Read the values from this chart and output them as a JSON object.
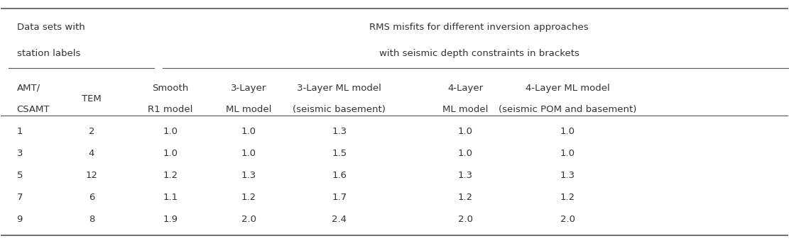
{
  "header_group1_line1": "Data sets with",
  "header_group1_line2": "station labels",
  "header_group2_line1": "RMS misfits for different inversion approaches",
  "header_group2_line2": "with seismic depth constraints in brackets",
  "col_headers": [
    [
      "AMT/",
      "CSAMT"
    ],
    [
      "TEM",
      ""
    ],
    [
      "Smooth",
      "R1 model"
    ],
    [
      "3-Layer",
      "ML model"
    ],
    [
      "3-Layer ML model",
      "(seismic basement)"
    ],
    [
      "4-Layer",
      "ML model"
    ],
    [
      "4-Layer ML model",
      "(seismic POM and basement)"
    ]
  ],
  "rows": [
    [
      "1",
      "2",
      "1.0",
      "1.0",
      "1.3",
      "1.0",
      "1.0"
    ],
    [
      "3",
      "4",
      "1.0",
      "1.0",
      "1.5",
      "1.0",
      "1.0"
    ],
    [
      "5",
      "12",
      "1.2",
      "1.3",
      "1.6",
      "1.3",
      "1.3"
    ],
    [
      "7",
      "6",
      "1.1",
      "1.2",
      "1.7",
      "1.2",
      "1.2"
    ],
    [
      "9",
      "8",
      "1.9",
      "2.0",
      "2.4",
      "2.0",
      "2.0"
    ]
  ],
  "bg_color": "#f5f5f5",
  "text_color": "#333333",
  "font_size": 9.5,
  "header_font_size": 9.5
}
